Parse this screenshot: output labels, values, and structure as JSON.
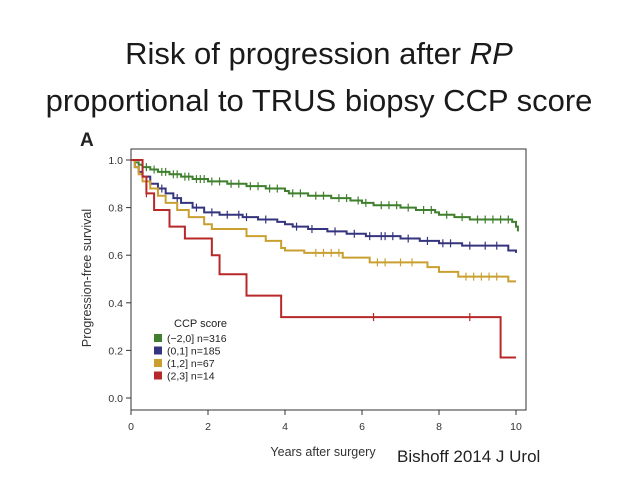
{
  "slide": {
    "title_line1_main": "Risk of progression after ",
    "title_line1_em": "RP",
    "title_line2": "proportional to TRUS biopsy CCP score",
    "citation": "Bishoff 2014 J Urol"
  },
  "chart_data": {
    "type": "line",
    "panel_label": "A",
    "title": "",
    "xlabel": "Years after surgery",
    "ylabel": "Progression-free survival",
    "xlim": [
      0,
      10
    ],
    "ylim": [
      0,
      1.0
    ],
    "x_ticks": [
      0,
      2,
      4,
      6,
      8,
      10
    ],
    "y_ticks": [
      0.0,
      0.2,
      0.4,
      0.6,
      0.8,
      1.0
    ],
    "x_tick_labels": [
      "0",
      "2",
      "4",
      "6",
      "8",
      "10"
    ],
    "y_tick_labels": [
      "0.0",
      "0.2",
      "0.4",
      "0.6",
      "0.8",
      "1.0"
    ],
    "legend_title": "CCP score",
    "legend_position": "lower-left",
    "series": [
      {
        "name": "(−2,0] n=316",
        "color": "#3f7f2d",
        "steps": [
          [
            0,
            1.0
          ],
          [
            0.1,
            0.99
          ],
          [
            0.2,
            0.98
          ],
          [
            0.3,
            0.97
          ],
          [
            0.5,
            0.96
          ],
          [
            0.7,
            0.95
          ],
          [
            1.0,
            0.94
          ],
          [
            1.3,
            0.93
          ],
          [
            1.6,
            0.92
          ],
          [
            2.0,
            0.91
          ],
          [
            2.5,
            0.9
          ],
          [
            3.0,
            0.89
          ],
          [
            3.5,
            0.88
          ],
          [
            4.0,
            0.87
          ],
          [
            4.1,
            0.86
          ],
          [
            4.6,
            0.85
          ],
          [
            5.2,
            0.84
          ],
          [
            5.7,
            0.83
          ],
          [
            6.0,
            0.82
          ],
          [
            6.3,
            0.81
          ],
          [
            7.0,
            0.8
          ],
          [
            7.4,
            0.79
          ],
          [
            7.9,
            0.78
          ],
          [
            8.0,
            0.77
          ],
          [
            8.4,
            0.76
          ],
          [
            8.8,
            0.75
          ],
          [
            9.9,
            0.74
          ],
          [
            10.0,
            0.72
          ],
          [
            10.05,
            0.7
          ]
        ],
        "censor_x": [
          0.4,
          0.6,
          0.8,
          0.9,
          1.1,
          1.2,
          1.4,
          1.5,
          1.7,
          1.8,
          1.9,
          2.1,
          2.3,
          2.6,
          2.8,
          3.1,
          3.3,
          3.6,
          3.8,
          4.2,
          4.4,
          4.8,
          5.0,
          5.4,
          5.6,
          5.9,
          6.1,
          6.5,
          6.7,
          6.9,
          7.2,
          7.6,
          7.8,
          8.2,
          8.6,
          9.0,
          9.2,
          9.4,
          9.6,
          9.8
        ]
      },
      {
        "name": "(0,1] n=185",
        "color": "#35357f",
        "steps": [
          [
            0,
            1.0
          ],
          [
            0.1,
            0.97
          ],
          [
            0.2,
            0.95
          ],
          [
            0.3,
            0.93
          ],
          [
            0.5,
            0.9
          ],
          [
            0.7,
            0.88
          ],
          [
            0.9,
            0.86
          ],
          [
            1.1,
            0.84
          ],
          [
            1.3,
            0.82
          ],
          [
            1.6,
            0.8
          ],
          [
            1.9,
            0.78
          ],
          [
            2.3,
            0.77
          ],
          [
            2.9,
            0.76
          ],
          [
            3.3,
            0.75
          ],
          [
            3.8,
            0.74
          ],
          [
            4.0,
            0.73
          ],
          [
            4.2,
            0.72
          ],
          [
            4.6,
            0.71
          ],
          [
            5.1,
            0.7
          ],
          [
            5.6,
            0.69
          ],
          [
            6.1,
            0.68
          ],
          [
            6.4,
            0.68
          ],
          [
            7.0,
            0.67
          ],
          [
            7.5,
            0.66
          ],
          [
            8.0,
            0.65
          ],
          [
            8.6,
            0.64
          ],
          [
            9.0,
            0.64
          ],
          [
            9.8,
            0.62
          ],
          [
            10.0,
            0.61
          ]
        ],
        "censor_x": [
          0.8,
          1.2,
          1.7,
          2.1,
          2.5,
          2.8,
          3.0,
          3.5,
          4.3,
          4.7,
          5.3,
          5.8,
          6.2,
          6.5,
          6.6,
          6.8,
          7.2,
          7.7,
          8.1,
          8.3,
          8.8,
          9.2,
          9.5
        ]
      },
      {
        "name": "(1,2] n=67",
        "color": "#c9a030",
        "steps": [
          [
            0,
            1.0
          ],
          [
            0.1,
            0.97
          ],
          [
            0.2,
            0.94
          ],
          [
            0.3,
            0.91
          ],
          [
            0.5,
            0.88
          ],
          [
            0.7,
            0.85
          ],
          [
            0.9,
            0.82
          ],
          [
            1.2,
            0.79
          ],
          [
            1.5,
            0.76
          ],
          [
            1.9,
            0.73
          ],
          [
            2.1,
            0.71
          ],
          [
            3.0,
            0.68
          ],
          [
            3.5,
            0.66
          ],
          [
            3.9,
            0.63
          ],
          [
            4.0,
            0.62
          ],
          [
            4.5,
            0.61
          ],
          [
            5.5,
            0.59
          ],
          [
            6.2,
            0.57
          ],
          [
            7.7,
            0.55
          ],
          [
            8.0,
            0.53
          ],
          [
            8.5,
            0.51
          ],
          [
            9.8,
            0.49
          ],
          [
            10.0,
            0.49
          ]
        ],
        "censor_x": [
          4.8,
          5.0,
          5.2,
          5.4,
          6.4,
          6.6,
          7.0,
          7.3,
          8.7,
          8.9,
          9.1,
          9.3,
          9.5
        ]
      },
      {
        "name": "(2,3] n=14",
        "color": "#b82828",
        "steps": [
          [
            0,
            1.0
          ],
          [
            0.3,
            0.93
          ],
          [
            0.4,
            0.86
          ],
          [
            0.6,
            0.79
          ],
          [
            1.0,
            0.72
          ],
          [
            1.4,
            0.67
          ],
          [
            2.1,
            0.6
          ],
          [
            2.3,
            0.52
          ],
          [
            3.0,
            0.43
          ],
          [
            3.9,
            0.34
          ],
          [
            9.6,
            0.17
          ],
          [
            10.0,
            0.17
          ]
        ],
        "censor_x": [
          0.4,
          6.3,
          8.8
        ]
      }
    ]
  }
}
